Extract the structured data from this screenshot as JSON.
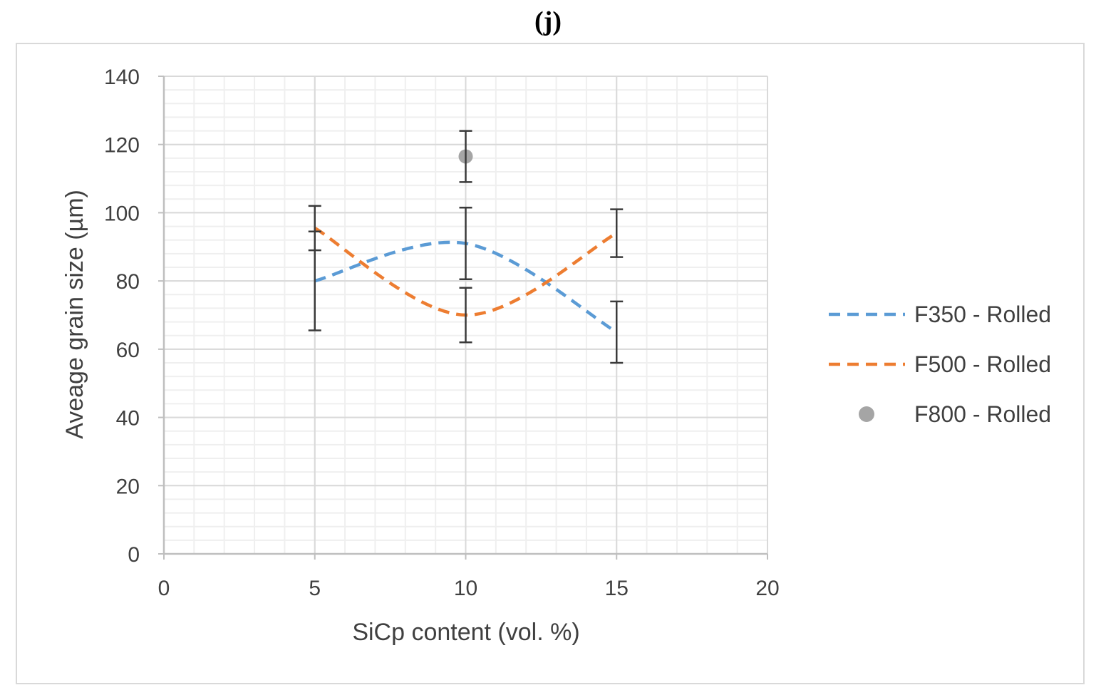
{
  "panel_label": "(j)",
  "chart_data": {
    "type": "line",
    "title": "",
    "xlabel": "SiCp content (vol. %)",
    "ylabel": "Aveage grain size (µm)",
    "xlim": [
      0,
      20
    ],
    "ylim": [
      0,
      140
    ],
    "x_major_ticks": [
      0,
      5,
      10,
      15,
      20
    ],
    "y_major_ticks": [
      0,
      20,
      40,
      60,
      80,
      100,
      120,
      140
    ],
    "x_minor_step": 1,
    "y_minor_step": 4,
    "grid": true,
    "legend_position": "right",
    "series": [
      {
        "name": "F350 - Rolled",
        "style": "dashed-smooth",
        "color": "#5b9bd5",
        "x": [
          5,
          10,
          15
        ],
        "y": [
          80,
          91,
          65
        ],
        "error": [
          14.5,
          10.5,
          9
        ]
      },
      {
        "name": "F500 - Rolled",
        "style": "dashed-smooth",
        "color": "#ed7d31",
        "x": [
          5,
          10,
          15
        ],
        "y": [
          95.5,
          70,
          94
        ],
        "error": [
          6.5,
          8,
          7
        ]
      },
      {
        "name": "F800 - Rolled",
        "style": "marker",
        "color": "#a5a5a5",
        "x": [
          10
        ],
        "y": [
          116.5
        ],
        "error": [
          7.5
        ]
      }
    ]
  }
}
